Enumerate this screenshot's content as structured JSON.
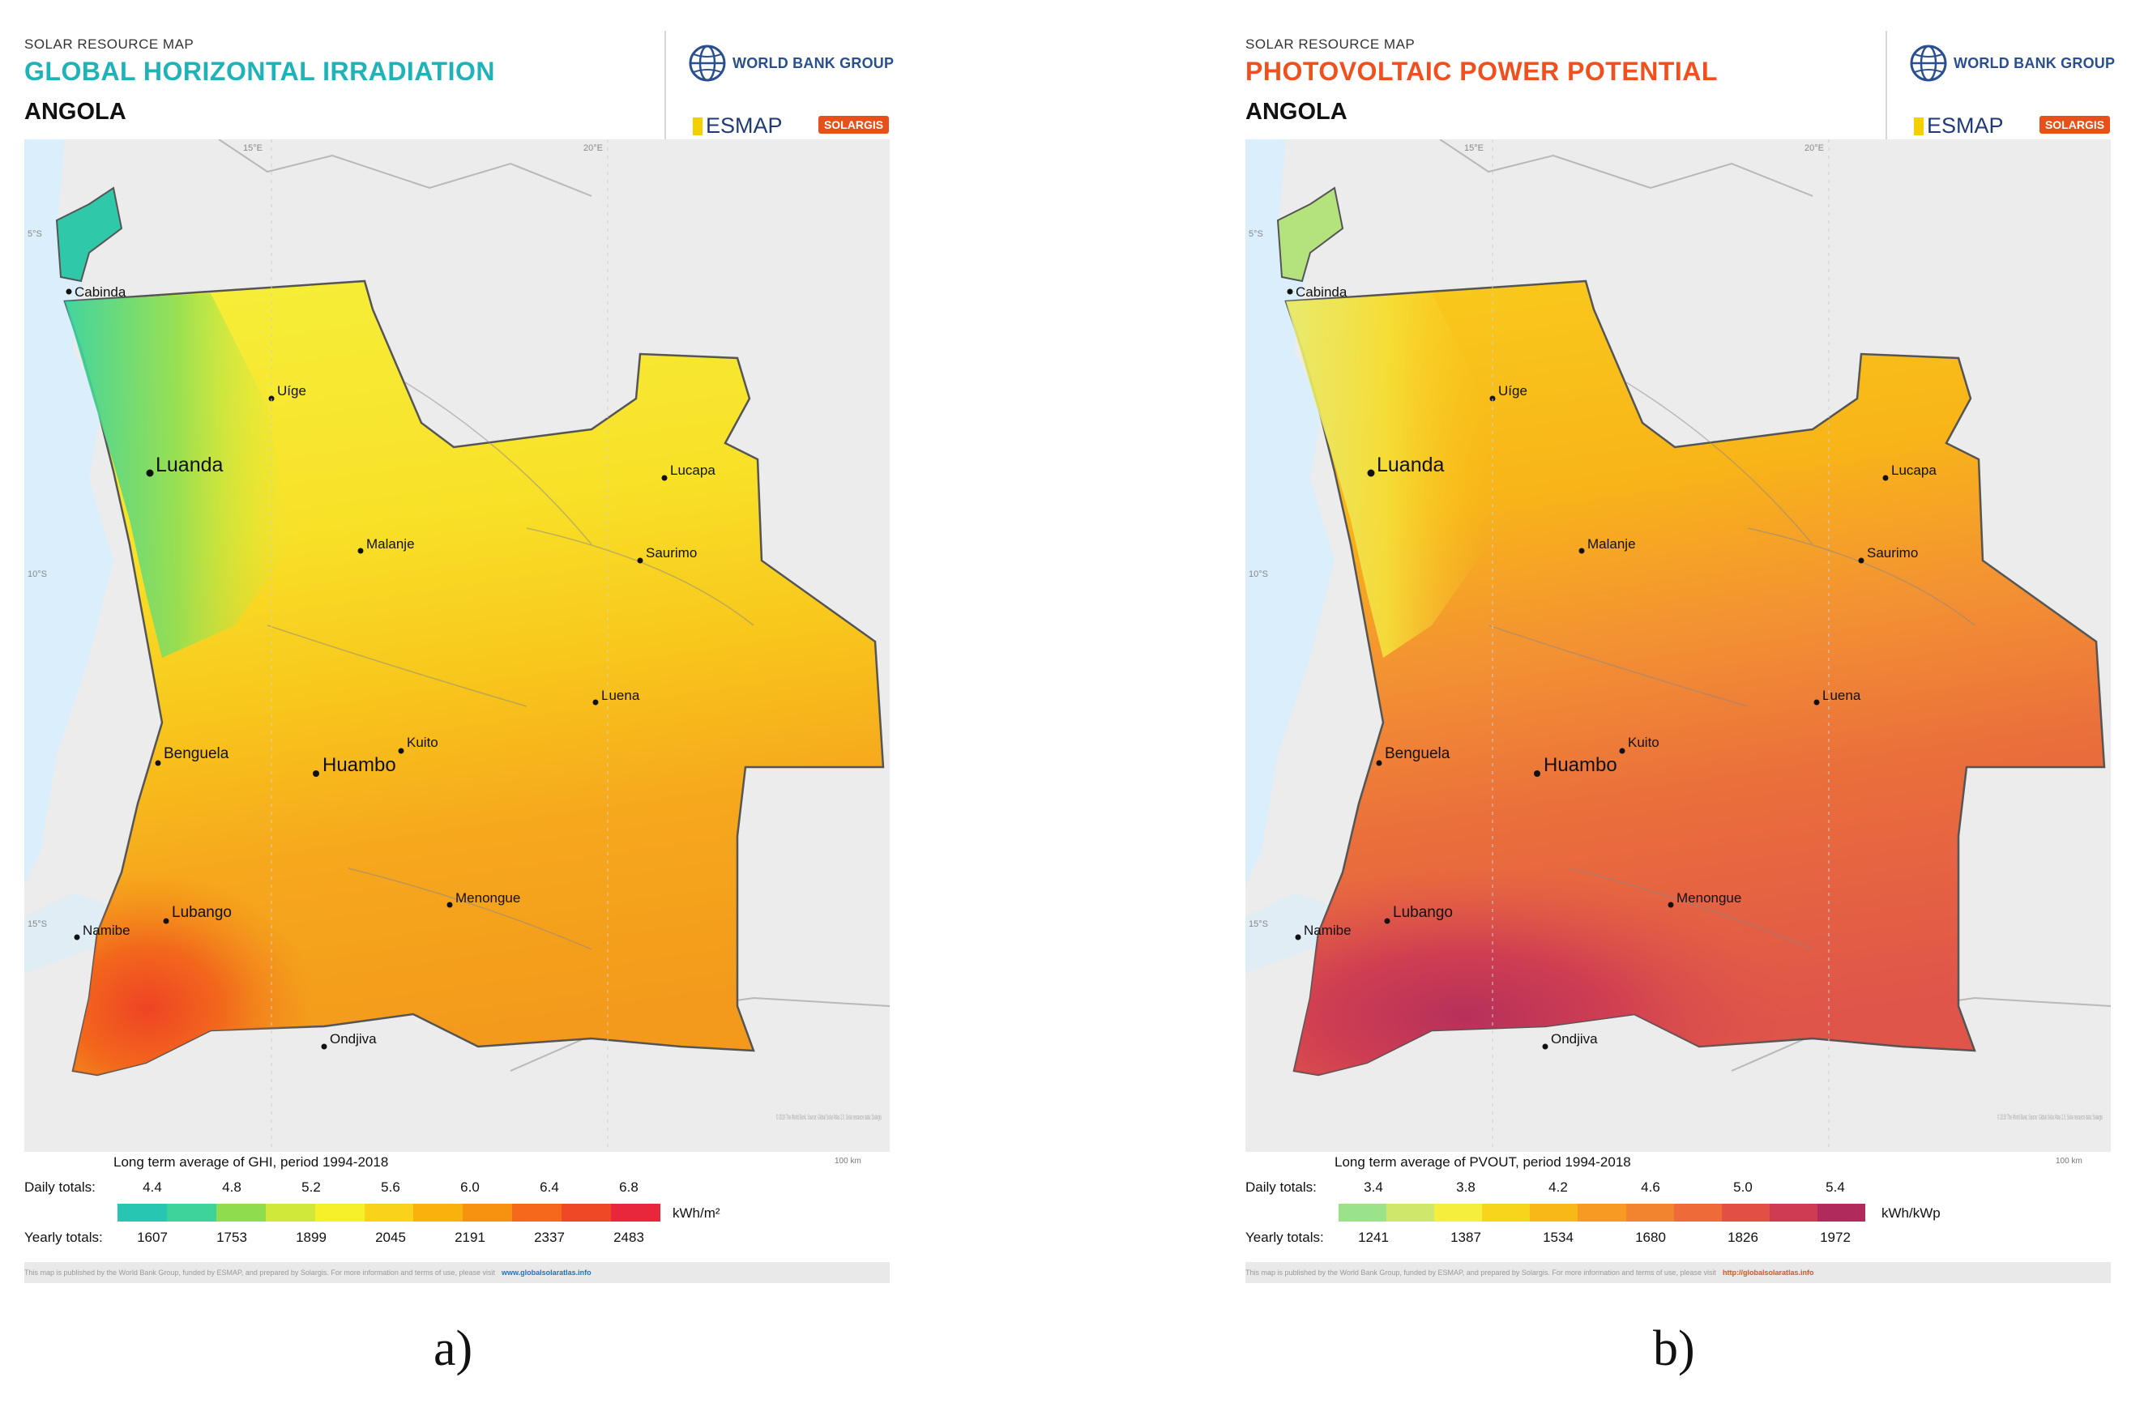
{
  "panels": [
    {
      "id": "a",
      "header_small": "SOLAR RESOURCE MAP",
      "title": "GLOBAL HORIZONTAL IRRADIATION",
      "title_color": "#1fb3b8",
      "country": "ANGOLA",
      "legend_title": "Long term average of GHI, period 1994-2018",
      "daily_label": "Daily totals:",
      "daily_values": [
        "4.4",
        "4.8",
        "5.2",
        "5.6",
        "6.0",
        "6.4",
        "6.8"
      ],
      "yearly_label": "Yearly totals:",
      "yearly_values": [
        "1607",
        "1753",
        "1899",
        "2045",
        "2191",
        "2337",
        "2483"
      ],
      "unit": "kWh/m²",
      "legend_colors": [
        "#27c6b2",
        "#3ed39b",
        "#8fdc4e",
        "#cfe83a",
        "#f5f02a",
        "#f9d21c",
        "#f8b10d",
        "#f79110",
        "#f4691b",
        "#ef4827",
        "#e8283a"
      ],
      "footer_link": "www.globalsolaratlas.info",
      "map_colors": {
        "north": "#f6ef3a",
        "coast_north": "#46d8ad",
        "coast_mid": "#a4e35a",
        "center": "#f8d51f",
        "east": "#f7c21a",
        "south": "#f6a41d",
        "southwest": "#f26b1d",
        "deep_south": "#ee4425"
      }
    },
    {
      "id": "b",
      "header_small": "SOLAR RESOURCE MAP",
      "title": "PHOTOVOLTAIC POWER POTENTIAL",
      "title_color": "#f0501e",
      "country": "ANGOLA",
      "legend_title": "Long term average of PVOUT, period 1994-2018",
      "daily_label": "Daily totals:",
      "daily_values": [
        "3.4",
        "3.8",
        "4.2",
        "4.6",
        "5.0",
        "5.4"
      ],
      "yearly_label": "Yearly totals:",
      "yearly_values": [
        "1241",
        "1387",
        "1534",
        "1680",
        "1826",
        "1972"
      ],
      "unit": "kWh/kWp",
      "legend_colors": [
        "#9be38a",
        "#cfe86b",
        "#f5ee3c",
        "#f8d51d",
        "#f8b818",
        "#f79a23",
        "#f3842f",
        "#ee6a38",
        "#e24f44",
        "#cf3c52",
        "#b02a5c"
      ],
      "footer_link": "http://globalsolaratlas.info",
      "map_colors": {
        "north": "#f9c21c",
        "coast_north": "#e8ee70",
        "coast_mid": "#f6e53a",
        "center": "#f18b34",
        "east": "#f3963a",
        "south": "#e2584a",
        "southwest": "#d2404f",
        "deep_south": "#b8305c"
      }
    }
  ],
  "cities": [
    "Cabinda",
    "Uíge",
    "Luanda",
    "Lucapa",
    "Malanje",
    "Saurimo",
    "Luena",
    "Kuito",
    "Benguela",
    "Huambo",
    "Menongue",
    "Lubango",
    "Namibe",
    "Ondjiva"
  ],
  "captions": [
    "a)",
    "b)"
  ],
  "footer_text": "This map is published by the World Bank Group, funded by ESMAP, and prepared by Solargis. For more information and terms of use, please visit",
  "scale_label": "100 km",
  "coords": [
    "15°E",
    "20°E",
    "5°S",
    "10°S",
    "15°S"
  ],
  "map_note": "© 2019 The World Bank, Source: Global Solar Atlas 2.0, Solar resource data: Solargis"
}
